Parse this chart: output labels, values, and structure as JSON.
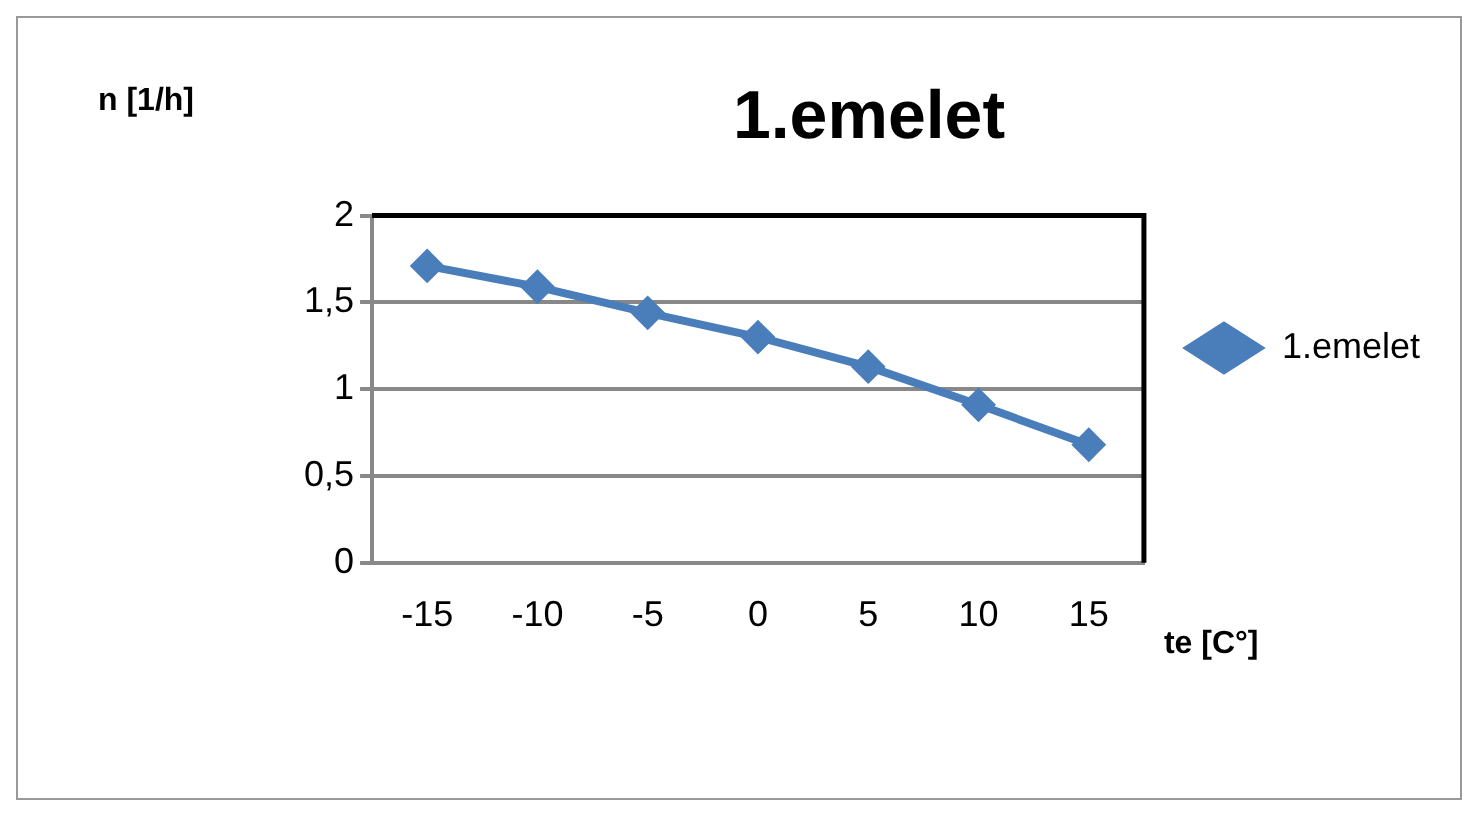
{
  "chart_data": {
    "type": "line",
    "title": "1.emelet",
    "xlabel": "te [C°]",
    "ylabel": "n [1/h]",
    "categories": [
      "-15",
      "-10",
      "-5",
      "0",
      "5",
      "10",
      "15"
    ],
    "series": [
      {
        "name": "1.emelet",
        "color": "#4a7ebb",
        "values": [
          1.71,
          1.59,
          1.44,
          1.3,
          1.13,
          0.91,
          0.68
        ]
      }
    ],
    "ylim": [
      0,
      2
    ],
    "yticks": [
      0,
      {
        "value": 0.5,
        "label": "0,5"
      },
      1,
      {
        "value": 1.5,
        "label": "1,5"
      },
      2
    ],
    "grid": "y",
    "legend": "right",
    "marker": "diamond",
    "line_style": "solid"
  }
}
